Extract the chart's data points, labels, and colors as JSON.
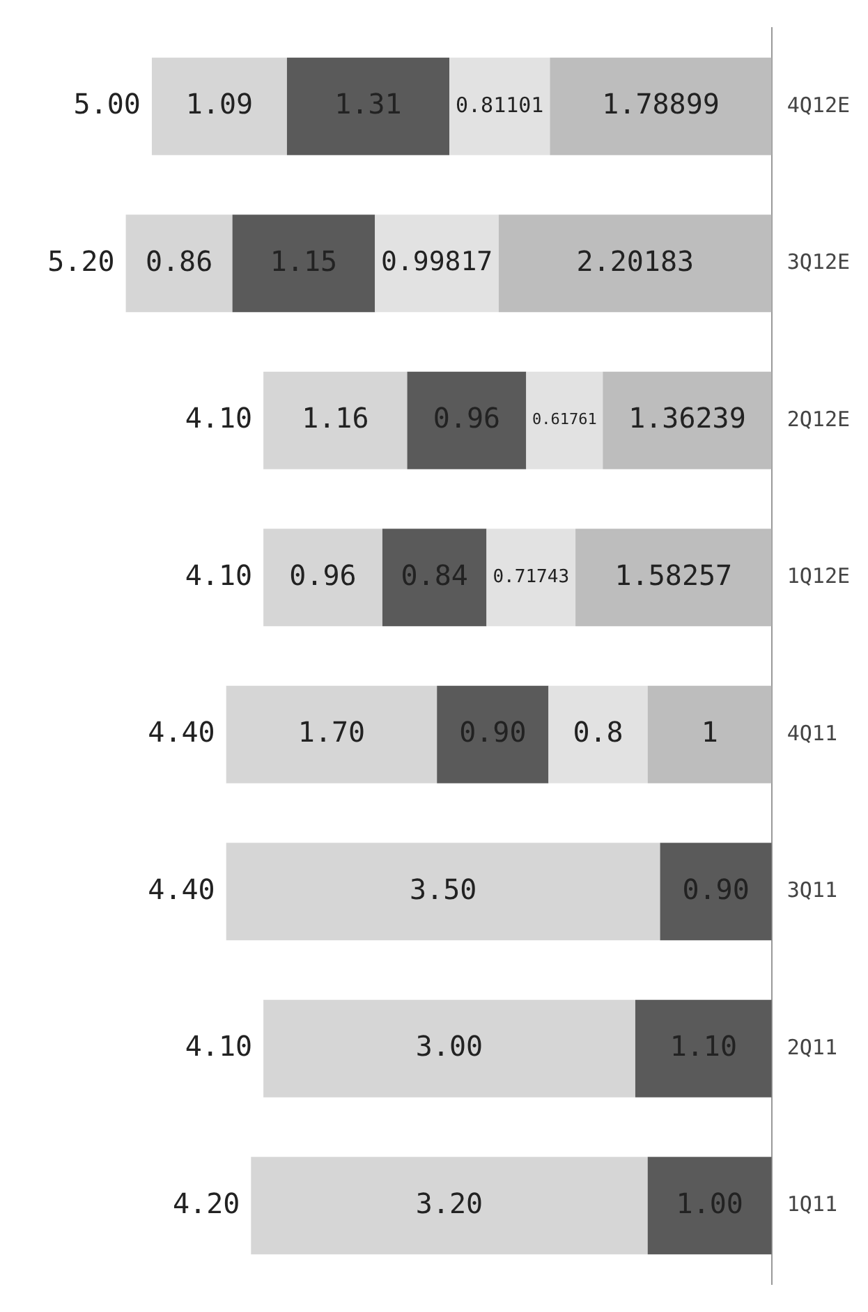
{
  "chart_data": {
    "type": "bar",
    "orientation": "horizontal",
    "stacked": true,
    "categories": [
      "4Q12E",
      "3Q12E",
      "2Q12E",
      "1Q12E",
      "4Q11",
      "3Q11",
      "2Q11",
      "1Q11"
    ],
    "series": [
      {
        "color": "#bdbdbd",
        "values": [
          1.78899,
          2.20183,
          1.36239,
          1.58257,
          1,
          null,
          null,
          null
        ],
        "value_labels": [
          "1.78899",
          "2.20183",
          "1.36239",
          "1.58257",
          "1",
          null,
          null,
          null
        ]
      },
      {
        "color": "#e2e2e2",
        "values": [
          0.81101,
          0.99817,
          0.61761,
          0.71743,
          0.8,
          null,
          null,
          null
        ],
        "value_labels": [
          "0.81101",
          "0.99817",
          "0.61761",
          "0.71743",
          "0.8",
          null,
          null,
          null
        ]
      },
      {
        "color": "#5a5a5a",
        "values": [
          1.31,
          1.15,
          0.96,
          0.84,
          0.9,
          0.9,
          1.1,
          1.0
        ],
        "value_labels": [
          "1.31",
          "1.15",
          "0.96",
          "0.84",
          "0.90",
          "0.90",
          "1.10",
          "1.00"
        ]
      },
      {
        "color": "#d6d6d6",
        "values": [
          1.09,
          0.86,
          1.16,
          0.96,
          1.7,
          3.5,
          3.0,
          3.2
        ],
        "value_labels": [
          "1.09",
          "0.86",
          "1.16",
          "0.96",
          "1.70",
          "3.50",
          "3.00",
          "3.20"
        ]
      }
    ],
    "totals": [
      "5.00",
      "5.20",
      "4.10",
      "4.10",
      "4.40",
      "4.40",
      "4.10",
      "4.20"
    ]
  }
}
